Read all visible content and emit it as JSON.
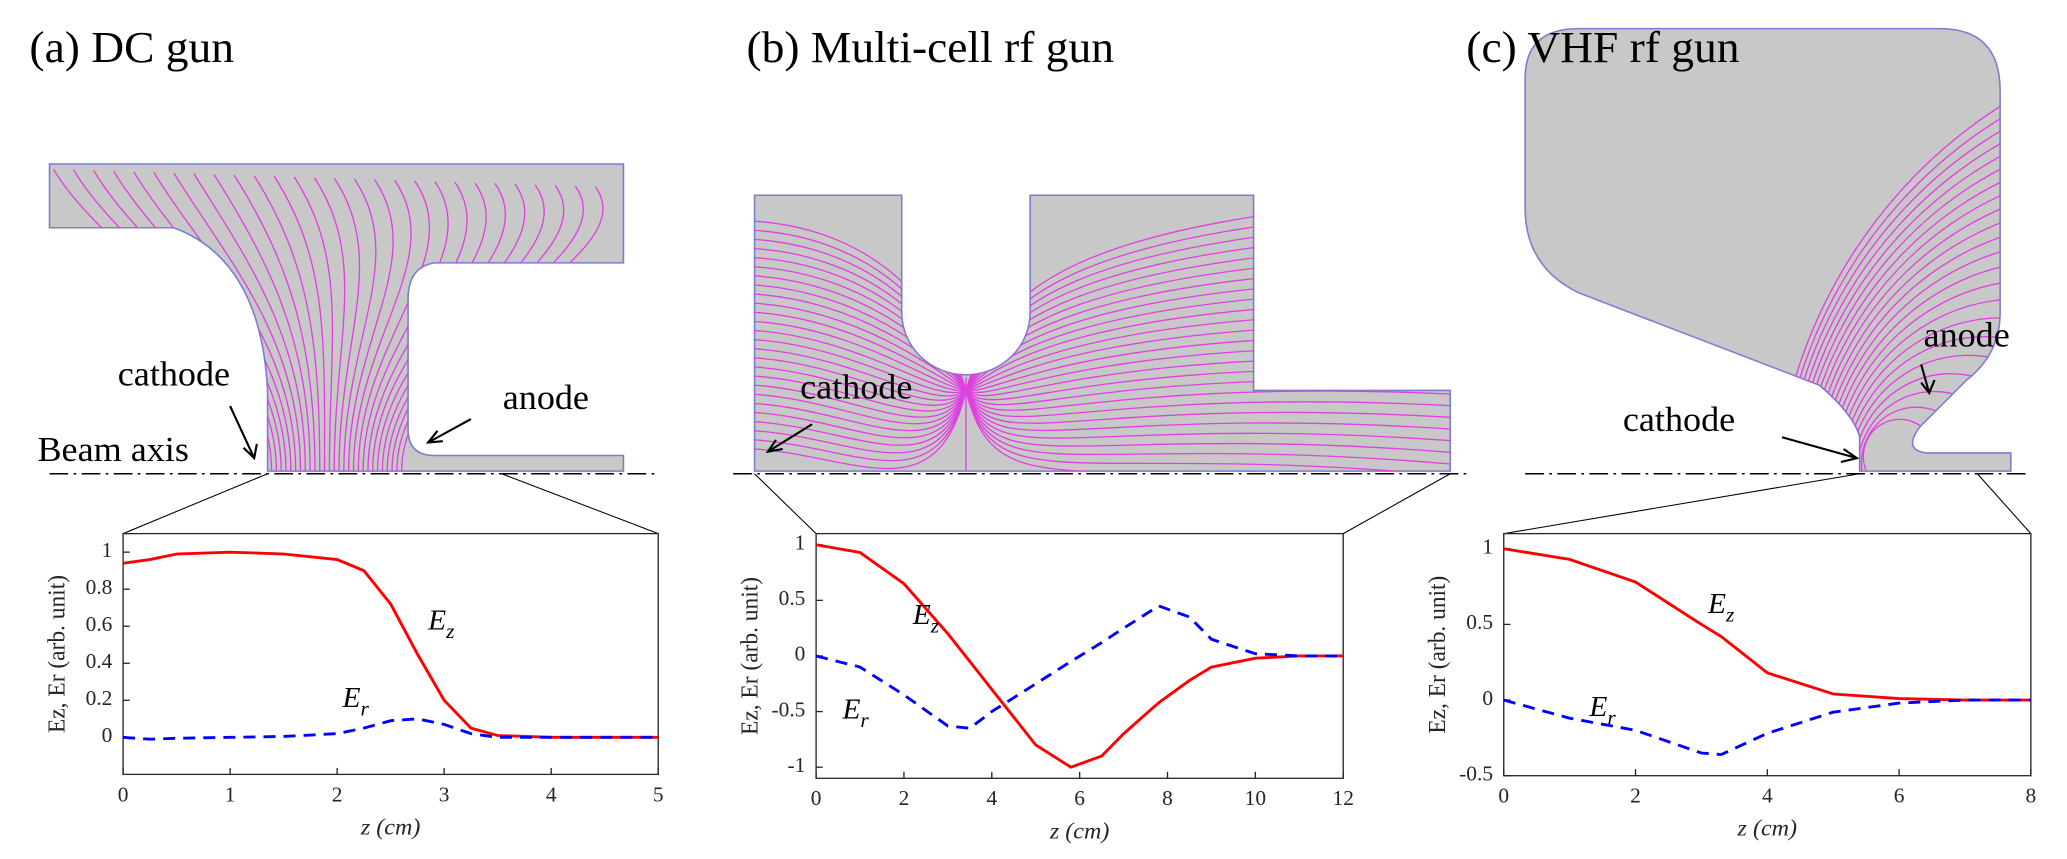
{
  "chart_data": [
    {
      "type": "line",
      "title": "(a) DC gun",
      "annotations": [
        "cathode",
        "anode",
        "Beam axis"
      ],
      "xlabel": "z (cm)",
      "ylabel": "Ez, Er (arb. unit)",
      "x": [
        0,
        0.25,
        0.5,
        1,
        1.5,
        2,
        2.25,
        2.5,
        2.75,
        3,
        3.25,
        3.5,
        4,
        4.5,
        5
      ],
      "series": [
        {
          "name": "Ez",
          "color": "#ff0000",
          "linestyle": "solid",
          "values": [
            0.94,
            0.96,
            0.99,
            1.0,
            0.99,
            0.96,
            0.9,
            0.72,
            0.45,
            0.2,
            0.05,
            0.01,
            0,
            0,
            0
          ]
        },
        {
          "name": "Er",
          "color": "#0000ff",
          "linestyle": "dashed",
          "values": [
            0,
            -0.01,
            -0.005,
            0,
            0.005,
            0.02,
            0.05,
            0.09,
            0.1,
            0.07,
            0.02,
            0,
            0,
            0,
            0
          ]
        }
      ],
      "xlim": [
        0,
        5
      ],
      "ylim": [
        -0.2,
        1.1
      ],
      "xticks": [
        0,
        1,
        2,
        3,
        4,
        5
      ],
      "yticks": [
        0,
        0.2,
        0.4,
        0.6,
        0.8,
        1
      ]
    },
    {
      "type": "line",
      "title": "(b) Multi-cell rf gun",
      "annotations": [
        "cathode"
      ],
      "xlabel": "z (cm)",
      "ylabel": "Ez, Er (arb. unit)",
      "x": [
        0,
        1,
        2,
        3,
        3.5,
        4,
        5,
        5.8,
        6.5,
        7,
        7.8,
        8.5,
        9,
        10,
        11,
        12
      ],
      "series": [
        {
          "name": "Ez",
          "color": "#ff0000",
          "linestyle": "solid",
          "values": [
            1,
            0.93,
            0.65,
            0.2,
            -0.05,
            -0.3,
            -0.8,
            -1,
            -0.9,
            -0.7,
            -0.42,
            -0.22,
            -0.1,
            -0.02,
            0,
            0
          ]
        },
        {
          "name": "Er",
          "color": "#0000ff",
          "linestyle": "dashed",
          "values": [
            0,
            -0.1,
            -0.35,
            -0.63,
            -0.65,
            -0.5,
            -0.25,
            -0.05,
            0.12,
            0.25,
            0.45,
            0.35,
            0.15,
            0.02,
            0,
            0
          ]
        }
      ],
      "xlim": [
        0,
        12
      ],
      "ylim": [
        -1.1,
        1.1
      ],
      "xticks": [
        0,
        2,
        4,
        6,
        8,
        10,
        12
      ],
      "yticks": [
        -1,
        -0.5,
        0,
        0.5,
        1
      ]
    },
    {
      "type": "line",
      "title": "(c) VHF rf gun",
      "annotations": [
        "cathode",
        "anode"
      ],
      "xlabel": "z (cm)",
      "ylabel": "Ez, Er (arb. unit)",
      "x": [
        0,
        1,
        2,
        3,
        3.3,
        4,
        5,
        6,
        7,
        8
      ],
      "series": [
        {
          "name": "Ez",
          "color": "#ff0000",
          "linestyle": "solid",
          "values": [
            1,
            0.93,
            0.78,
            0.5,
            0.42,
            0.18,
            0.04,
            0.01,
            0,
            0
          ]
        },
        {
          "name": "Er",
          "color": "#0000ff",
          "linestyle": "dashed",
          "values": [
            0,
            -0.12,
            -0.2,
            -0.35,
            -0.36,
            -0.22,
            -0.08,
            -0.02,
            0,
            0
          ]
        }
      ],
      "xlim": [
        0,
        8
      ],
      "ylim": [
        -0.5,
        1.1
      ],
      "xticks": [
        0,
        2,
        4,
        6,
        8
      ],
      "yticks": [
        -0.5,
        0,
        0.5,
        1
      ]
    }
  ]
}
